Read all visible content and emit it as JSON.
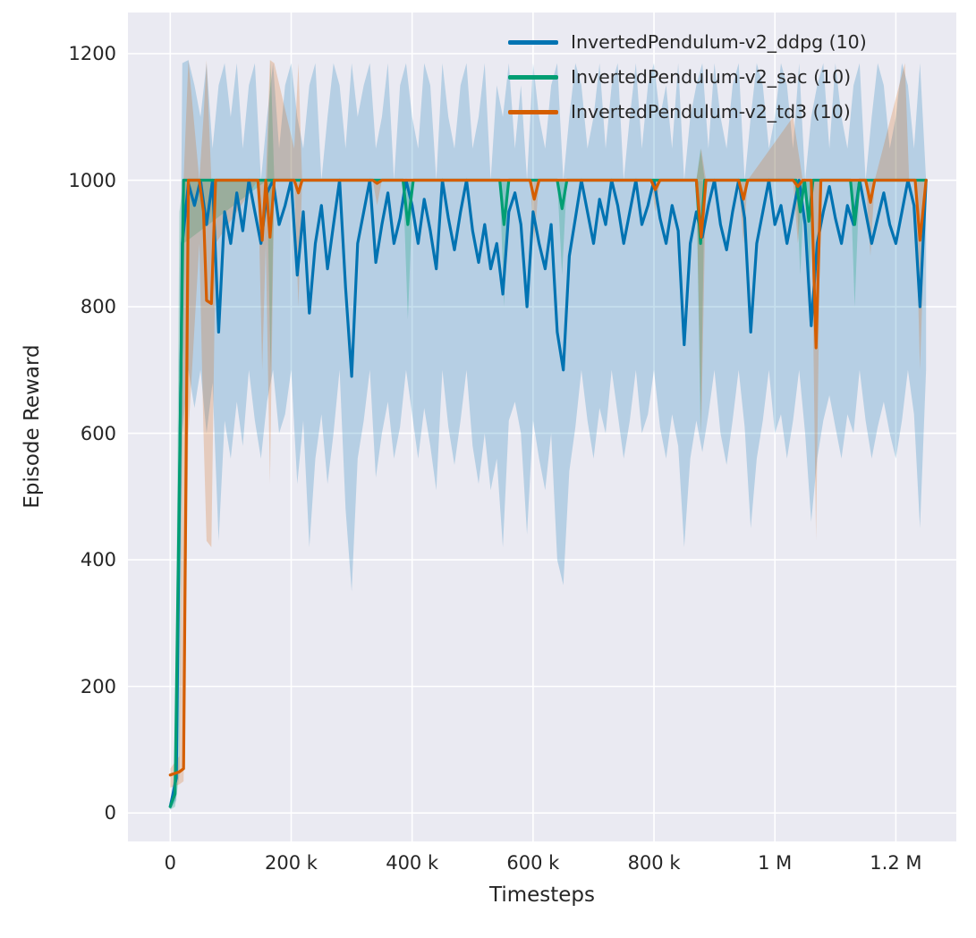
{
  "figure": {
    "description": "Episode reward training curves for three RL algorithms on InvertedPendulum-v2 over 10 seeds"
  },
  "chart_data": {
    "type": "line",
    "title": "",
    "xlabel": "Timesteps",
    "ylabel": "Episode Reward",
    "grid": true,
    "legend_position": "upper right",
    "plot_bg_color": "#eaeaf2",
    "grid_color": "#ffffff",
    "text_color": "#262626",
    "x_unit_note": "x values stored in thousands of timesteps",
    "xlim_k": [
      -70,
      1300
    ],
    "ylim": [
      -45,
      1265
    ],
    "xticks": [
      {
        "v": 0,
        "label": "0"
      },
      {
        "v": 200,
        "label": "200 k"
      },
      {
        "v": 400,
        "label": "400 k"
      },
      {
        "v": 600,
        "label": "600 k"
      },
      {
        "v": 800,
        "label": "800 k"
      },
      {
        "v": 1000,
        "label": "1 M"
      },
      {
        "v": 1200,
        "label": "1.2 M"
      }
    ],
    "yticks": [
      {
        "v": 0,
        "label": "0"
      },
      {
        "v": 200,
        "label": "200"
      },
      {
        "v": 400,
        "label": "400"
      },
      {
        "v": 600,
        "label": "600"
      },
      {
        "v": 800,
        "label": "800"
      },
      {
        "v": 1000,
        "label": "1000"
      },
      {
        "v": 1200,
        "label": "1200"
      }
    ],
    "series": [
      {
        "name": "InvertedPendulum-v2_ddpg (10)",
        "color": "#0173b2",
        "band_alpha": 0.22,
        "line_width": 3.2,
        "x_k": [
          0,
          10,
          20,
          30,
          40,
          50,
          60,
          70,
          80,
          90,
          100,
          110,
          120,
          130,
          140,
          150,
          160,
          170,
          180,
          190,
          200,
          210,
          220,
          230,
          240,
          250,
          260,
          270,
          280,
          290,
          300,
          310,
          320,
          330,
          340,
          350,
          360,
          370,
          380,
          390,
          400,
          410,
          420,
          430,
          440,
          450,
          460,
          470,
          480,
          490,
          500,
          510,
          520,
          530,
          540,
          550,
          560,
          570,
          580,
          590,
          600,
          610,
          620,
          630,
          640,
          650,
          660,
          670,
          680,
          690,
          700,
          710,
          720,
          730,
          740,
          750,
          760,
          770,
          780,
          790,
          800,
          810,
          820,
          830,
          840,
          850,
          860,
          870,
          880,
          890,
          900,
          910,
          920,
          930,
          940,
          950,
          960,
          970,
          980,
          990,
          1000,
          1010,
          1020,
          1030,
          1040,
          1050,
          1060,
          1070,
          1080,
          1090,
          1100,
          1110,
          1120,
          1130,
          1140,
          1150,
          1160,
          1170,
          1180,
          1190,
          1200,
          1210,
          1220,
          1230,
          1240,
          1250
        ],
        "y": [
          10,
          55,
          900,
          995,
          960,
          1000,
          930,
          1000,
          760,
          950,
          900,
          980,
          920,
          1000,
          950,
          900,
          980,
          1000,
          930,
          960,
          1000,
          850,
          950,
          790,
          900,
          960,
          860,
          930,
          1000,
          830,
          690,
          900,
          950,
          1000,
          870,
          930,
          980,
          900,
          940,
          1000,
          960,
          900,
          970,
          920,
          860,
          1000,
          940,
          890,
          950,
          1000,
          920,
          870,
          930,
          860,
          900,
          820,
          950,
          980,
          930,
          800,
          950,
          900,
          860,
          930,
          760,
          700,
          880,
          940,
          1000,
          950,
          900,
          970,
          930,
          1000,
          960,
          900,
          950,
          1000,
          930,
          960,
          1000,
          940,
          900,
          960,
          920,
          740,
          900,
          950,
          910,
          960,
          1000,
          930,
          890,
          950,
          1000,
          940,
          760,
          900,
          950,
          1000,
          930,
          960,
          900,
          950,
          1000,
          930,
          770,
          900,
          950,
          990,
          940,
          900,
          960,
          930,
          1000,
          950,
          900,
          940,
          980,
          930,
          900,
          950,
          1000,
          960,
          800,
          1000
        ],
        "band_lo": [
          5,
          20,
          600,
          700,
          640,
          700,
          600,
          680,
          430,
          620,
          560,
          650,
          580,
          700,
          620,
          560,
          650,
          700,
          600,
          630,
          700,
          520,
          620,
          420,
          560,
          630,
          520,
          600,
          700,
          480,
          350,
          560,
          620,
          700,
          530,
          600,
          650,
          560,
          610,
          700,
          630,
          560,
          640,
          580,
          510,
          700,
          610,
          550,
          620,
          700,
          580,
          520,
          600,
          510,
          560,
          420,
          620,
          650,
          600,
          440,
          620,
          560,
          510,
          600,
          400,
          360,
          540,
          610,
          700,
          620,
          560,
          640,
          600,
          700,
          630,
          560,
          620,
          700,
          600,
          630,
          700,
          610,
          560,
          630,
          580,
          420,
          560,
          620,
          570,
          630,
          700,
          600,
          550,
          620,
          700,
          610,
          450,
          560,
          620,
          700,
          600,
          630,
          560,
          620,
          700,
          600,
          460,
          560,
          620,
          660,
          610,
          560,
          630,
          600,
          700,
          620,
          560,
          610,
          650,
          600,
          560,
          620,
          700,
          630,
          450,
          700
        ],
        "band_hi": [
          15,
          90,
          1185,
          1190,
          1150,
          1100,
          1185,
          1050,
          1150,
          1185,
          1100,
          1185,
          1050,
          1150,
          1185,
          1000,
          1100,
          1185,
          1050,
          1150,
          1185,
          1100,
          1050,
          1150,
          1185,
          1000,
          1100,
          1185,
          1150,
          1050,
          1185,
          1100,
          1150,
          1185,
          1050,
          1100,
          1185,
          1000,
          1150,
          1185,
          1100,
          1050,
          1185,
          1150,
          1000,
          1185,
          1100,
          1050,
          1150,
          1185,
          1050,
          1100,
          1185,
          1000,
          1150,
          1100,
          1185,
          1050,
          1150,
          1000,
          1185,
          1100,
          1050,
          1150,
          1185,
          1000,
          1100,
          1185,
          1150,
          1050,
          1100,
          1185,
          1050,
          1150,
          1185,
          1000,
          1100,
          1185,
          1050,
          1150,
          1185,
          1100,
          1150,
          1050,
          1185,
          1000,
          1100,
          1150,
          1185,
          1050,
          1185,
          1100,
          1050,
          1150,
          1185,
          1000,
          1100,
          1185,
          1150,
          1050,
          1100,
          1185,
          1150,
          1050,
          1185,
          1000,
          1100,
          1150,
          1185,
          1050,
          1185,
          1100,
          1050,
          1150,
          1185,
          1000,
          1100,
          1185,
          1150,
          1050,
          1100,
          1185,
          1150,
          1050,
          1185,
          1000
        ]
      },
      {
        "name": "InvertedPendulum-v2_sac (10)",
        "color": "#029e73",
        "band_alpha": 0.25,
        "line_width": 3.2,
        "x_k": [
          0,
          8,
          15,
          22,
          160,
          166,
          172,
          178,
          385,
          393,
          402,
          545,
          552,
          560,
          640,
          648,
          656,
          870,
          877,
          884,
          1035,
          1042,
          1049,
          1056,
          1063,
          1125,
          1132,
          1140,
          1250
        ],
        "y": [
          10,
          30,
          520,
          1000,
          1000,
          1000,
          1000,
          1000,
          1000,
          930,
          1000,
          1000,
          930,
          1000,
          1000,
          955,
          1000,
          1000,
          900,
          1000,
          1000,
          950,
          1000,
          935,
          1000,
          1000,
          930,
          1000,
          1000
        ],
        "band_lo": [
          5,
          10,
          60,
          900,
          1000,
          700,
          1000,
          1000,
          1000,
          780,
          1000,
          1000,
          800,
          1000,
          1000,
          850,
          1000,
          1000,
          600,
          1000,
          1000,
          850,
          1000,
          800,
          1000,
          1000,
          800,
          1000,
          1000
        ],
        "band_hi": [
          15,
          60,
          950,
          1000,
          1000,
          1190,
          1000,
          1000,
          1000,
          1000,
          1000,
          1000,
          1000,
          1000,
          1000,
          1000,
          1000,
          1000,
          1050,
          1000,
          1000,
          1000,
          1000,
          1000,
          1000,
          1000,
          1000,
          1000,
          1000
        ]
      },
      {
        "name": "InvertedPendulum-v2_td3 (10)",
        "color": "#d55e00",
        "band_alpha": 0.22,
        "line_width": 3.2,
        "x_k": [
          0,
          15,
          22,
          30,
          48,
          55,
          60,
          68,
          75,
          145,
          152,
          158,
          165,
          172,
          205,
          212,
          218,
          335,
          342,
          350,
          595,
          602,
          610,
          795,
          802,
          810,
          870,
          878,
          886,
          940,
          948,
          955,
          1030,
          1038,
          1046,
          1060,
          1068,
          1076,
          1150,
          1158,
          1165,
          1215,
          1222,
          1232,
          1240,
          1250
        ],
        "y": [
          60,
          65,
          70,
          1000,
          1000,
          950,
          810,
          805,
          1000,
          1000,
          905,
          1000,
          910,
          1000,
          1000,
          980,
          1000,
          1000,
          995,
          1000,
          1000,
          970,
          1000,
          1000,
          985,
          1000,
          1000,
          910,
          1000,
          1000,
          970,
          1000,
          1000,
          990,
          1000,
          1000,
          735,
          1000,
          1000,
          965,
          1000,
          1000,
          1000,
          1000,
          905,
          1000
        ],
        "band_lo": [
          40,
          45,
          50,
          600,
          900,
          600,
          430,
          420,
          900,
          1000,
          700,
          900,
          520,
          1000,
          1000,
          800,
          1000,
          1000,
          960,
          1000,
          1000,
          900,
          1000,
          1000,
          950,
          1000,
          1000,
          600,
          1000,
          1000,
          900,
          1000,
          1000,
          900,
          1000,
          1000,
          430,
          1000,
          1000,
          880,
          1000,
          1000,
          1000,
          1000,
          700,
          1000
        ],
        "band_hi": [
          70,
          90,
          1000,
          1190,
          1000,
          1100,
          1190,
          1000,
          1000,
          1000,
          1000,
          1000,
          1190,
          1185,
          1050,
          1185,
          1000,
          1000,
          1000,
          1000,
          1000,
          1000,
          1000,
          1000,
          1000,
          1000,
          1000,
          1050,
          1000,
          1000,
          1000,
          1000,
          1100,
          1050,
          1000,
          1000,
          1000,
          1000,
          1000,
          1000,
          1000,
          1185,
          1000,
          1000,
          1000,
          1000
        ]
      }
    ]
  }
}
